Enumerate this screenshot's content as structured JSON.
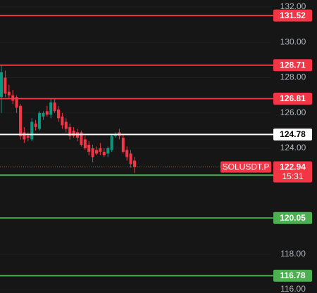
{
  "chart_data": {
    "type": "candlestick",
    "symbol": "SOLUSDT.P",
    "countdown": "15:31",
    "last_price": {
      "value": 122.94,
      "color": "#f23645"
    },
    "up_color": "#089981",
    "down_color": "#f23645",
    "open": [
      126.9,
      128.0,
      127.2,
      127.0,
      126.9,
      126.4,
      124.9,
      124.7,
      124.5,
      125.4,
      125.1,
      125.8,
      126.1,
      125.9,
      126.6,
      126.2,
      125.8,
      125.5,
      125.2,
      125.0,
      124.9,
      124.9,
      124.5,
      124.2,
      124.0,
      123.9,
      124.0,
      123.8,
      123.7,
      123.9,
      124.7,
      124.9,
      124.6,
      123.9,
      123.7,
      123.3
    ],
    "high": [
      128.7,
      128.4,
      127.6,
      127.3,
      127.0,
      126.5,
      125.2,
      124.9,
      125.7,
      125.6,
      126.1,
      126.1,
      126.4,
      126.8,
      126.8,
      126.4,
      126.0,
      125.7,
      125.4,
      125.2,
      125.1,
      125.0,
      124.7,
      124.4,
      124.2,
      124.1,
      124.3,
      124.0,
      124.1,
      124.8,
      124.9,
      125.1,
      124.8,
      124.1,
      123.9,
      123.5
    ],
    "low": [
      126.0,
      126.9,
      126.8,
      126.5,
      126.0,
      124.5,
      124.3,
      124.4,
      124.4,
      125.0,
      125.0,
      125.6,
      125.8,
      125.7,
      126.0,
      125.5,
      125.1,
      124.9,
      124.5,
      124.6,
      124.4,
      124.1,
      123.9,
      123.6,
      123.2,
      123.6,
      123.6,
      123.5,
      123.5,
      123.8,
      124.6,
      124.5,
      123.7,
      123.3,
      122.9,
      122.6
    ],
    "close": [
      128.3,
      127.1,
      127.0,
      126.7,
      126.3,
      124.7,
      124.5,
      124.6,
      125.5,
      125.2,
      126.0,
      126.0,
      125.9,
      126.6,
      126.1,
      125.7,
      125.3,
      125.1,
      124.7,
      124.7,
      124.6,
      124.2,
      124.0,
      123.8,
      123.5,
      123.7,
      123.8,
      123.6,
      124.0,
      124.7,
      124.8,
      124.7,
      123.8,
      123.5,
      123.1,
      122.94
    ],
    "levels": [
      {
        "value": 131.52,
        "color": "#f23645"
      },
      {
        "value": 128.71,
        "color": "#f23645"
      },
      {
        "value": 126.81,
        "color": "#f23645"
      },
      {
        "value": 124.78,
        "color": "#ffffff"
      },
      {
        "value": 122.48,
        "color": "#4caf50"
      },
      {
        "value": 120.05,
        "color": "#4caf50"
      },
      {
        "value": 116.78,
        "color": "#4caf50"
      }
    ],
    "ylim": [
      115.8,
      132.4
    ],
    "yticks": [
      {
        "value": 132,
        "label": "132.00"
      },
      {
        "value": 130,
        "label": "130.00"
      },
      {
        "value": 128,
        "label": "128.00"
      },
      {
        "value": 126,
        "label": "126.00"
      },
      {
        "value": 124,
        "label": "124.00"
      },
      {
        "value": 118,
        "label": "118.00"
      },
      {
        "value": 116,
        "label": "116.00"
      }
    ]
  }
}
